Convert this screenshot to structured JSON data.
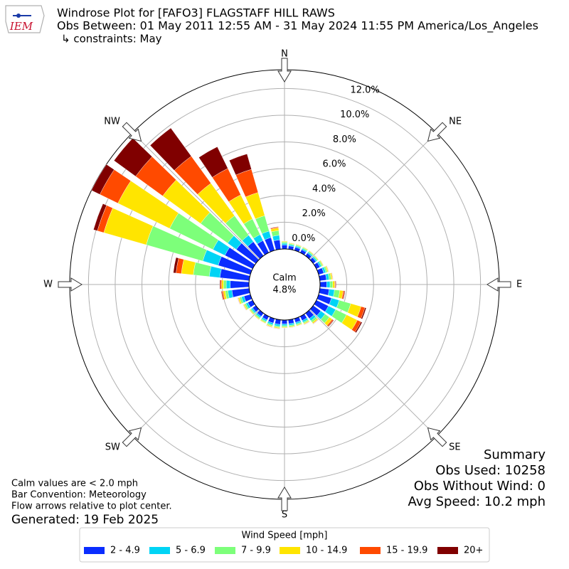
{
  "chart_data": {
    "type": "windrose",
    "title": "Windrose Plot for [FAFO3] FLAGSTAFF HILL RAWS",
    "subtitle": "Obs Between: 01 May 2011 12:55 AM - 31 May 2024 11:55 PM America/Los_Angeles",
    "constraints": "↳ constraints: May",
    "logo_text": "IEM",
    "x": [
      0,
      10,
      20,
      30,
      40,
      50,
      60,
      70,
      80,
      90,
      100,
      110,
      120,
      130,
      140,
      150,
      160,
      170,
      180,
      190,
      200,
      210,
      220,
      230,
      240,
      250,
      260,
      270,
      280,
      290,
      300,
      310,
      320,
      330,
      340,
      350
    ],
    "xticks": [
      {
        "value": 0,
        "label": "N"
      },
      {
        "value": 45,
        "label": "NE"
      },
      {
        "value": 90,
        "label": "E"
      },
      {
        "value": 135,
        "label": "SE"
      },
      {
        "value": 180,
        "label": "S"
      },
      {
        "value": 225,
        "label": "SW"
      },
      {
        "value": 270,
        "label": "W"
      },
      {
        "value": 315,
        "label": "NW"
      }
    ],
    "ylim": [
      0,
      13.4
    ],
    "yticks": [
      {
        "value": 0,
        "label": "0.0%"
      },
      {
        "value": 2,
        "label": "2.0%"
      },
      {
        "value": 4,
        "label": "4.0%"
      },
      {
        "value": 6,
        "label": "6.0%"
      },
      {
        "value": 8,
        "label": "8.0%"
      },
      {
        "value": 10,
        "label": "10.0%"
      },
      {
        "value": 12,
        "label": "12.0%"
      }
    ],
    "grid": true,
    "legend_title": "Wind Speed [mph]",
    "legend_position": "bottom",
    "series": [
      {
        "name": "2 - 4.9",
        "color": "#0a2dff",
        "values": [
          0.3,
          0.25,
          0.25,
          0.25,
          0.25,
          0.25,
          0.3,
          0.4,
          0.5,
          0.5,
          0.7,
          1.0,
          1.0,
          0.7,
          0.5,
          0.35,
          0.3,
          0.3,
          0.3,
          0.35,
          0.35,
          0.3,
          0.3,
          0.3,
          0.4,
          0.5,
          1.3,
          1.4,
          2.2,
          2.5,
          2.3,
          1.8,
          1.3,
          1.0,
          1.0,
          0.7
        ]
      },
      {
        "name": "5 - 6.9",
        "color": "#00d4f5",
        "values": [
          0.12,
          0.1,
          0.1,
          0.1,
          0.1,
          0.1,
          0.12,
          0.16,
          0.2,
          0.25,
          0.4,
          0.6,
          0.6,
          0.4,
          0.2,
          0.14,
          0.12,
          0.12,
          0.12,
          0.14,
          0.14,
          0.12,
          0.12,
          0.12,
          0.16,
          0.2,
          0.3,
          0.3,
          0.8,
          1.2,
          1.0,
          0.8,
          0.6,
          0.5,
          0.5,
          0.35
        ]
      },
      {
        "name": "7 - 9.9",
        "color": "#7dff7a",
        "values": [
          0.1,
          0.08,
          0.08,
          0.08,
          0.08,
          0.08,
          0.1,
          0.12,
          0.15,
          0.2,
          0.4,
          0.9,
          0.9,
          0.4,
          0.15,
          0.1,
          0.1,
          0.1,
          0.1,
          0.1,
          0.1,
          0.1,
          0.1,
          0.1,
          0.12,
          0.15,
          0.2,
          0.2,
          1.2,
          4.4,
          3.6,
          2.5,
          1.8,
          1.3,
          1.2,
          0.35
        ]
      },
      {
        "name": "10 - 14.9",
        "color": "#ffe500",
        "values": [
          0.06,
          0.05,
          0.05,
          0.05,
          0.05,
          0.05,
          0.06,
          0.08,
          0.1,
          0.15,
          0.25,
          0.8,
          0.9,
          0.25,
          0.1,
          0.07,
          0.06,
          0.06,
          0.06,
          0.07,
          0.07,
          0.06,
          0.06,
          0.06,
          0.08,
          0.1,
          0.15,
          0.15,
          0.9,
          3.3,
          4.3,
          3.5,
          3.0,
          2.0,
          1.8,
          0.2
        ]
      },
      {
        "name": "15 - 19.9",
        "color": "#ff4a00",
        "values": [
          0.01,
          0.01,
          0.01,
          0.01,
          0.01,
          0.01,
          0.01,
          0.02,
          0.03,
          0.05,
          0.1,
          0.3,
          0.3,
          0.1,
          0.03,
          0.02,
          0.01,
          0.01,
          0.01,
          0.02,
          0.02,
          0.01,
          0.01,
          0.01,
          0.02,
          0.03,
          0.1,
          0.1,
          0.4,
          0.5,
          1.5,
          2.5,
          2.5,
          2.2,
          1.8,
          0.07
        ]
      },
      {
        "name": "20+",
        "color": "#800000",
        "values": [
          0.01,
          0.01,
          0.01,
          0.01,
          0.01,
          0.01,
          0.01,
          0.02,
          0.02,
          0.05,
          0.05,
          0.1,
          0.1,
          0.05,
          0.02,
          0.02,
          0.01,
          0.01,
          0.01,
          0.02,
          0.02,
          0.01,
          0.01,
          0.01,
          0.02,
          0.02,
          0.05,
          0.05,
          0.2,
          0.3,
          0.7,
          2.0,
          2.6,
          1.8,
          1.2,
          0.03
        ]
      }
    ],
    "calm": {
      "label": "Calm",
      "value": 4.8,
      "value_label": "4.8%"
    },
    "summary": [
      "Summary",
      "Obs Used: 10258",
      "Obs Without Wind: 0",
      "Avg Speed: 10.2 mph"
    ],
    "notes": [
      "Calm values are < 2.0 mph",
      "Bar Convention: Meteorology",
      "Flow arrows relative to plot center."
    ],
    "generated": "Generated: 19 Feb 2025"
  }
}
